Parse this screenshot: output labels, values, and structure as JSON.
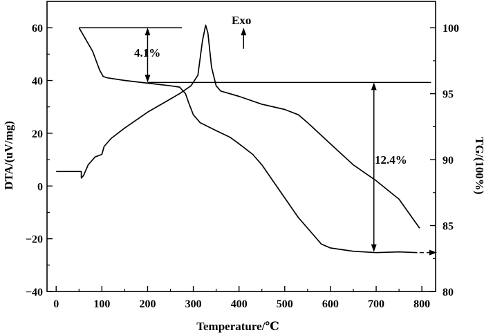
{
  "chart_data": {
    "type": "line",
    "title": "",
    "xlabel": "Temperature/℃",
    "ylabel_left": "DTA/(uV/mg)",
    "ylabel_right": "TG/(100%)",
    "xlim": [
      -20,
      830
    ],
    "ylim_left": [
      -40,
      70
    ],
    "ylim_right": [
      80,
      102
    ],
    "x_ticks": [
      0,
      100,
      200,
      300,
      400,
      500,
      600,
      700,
      800
    ],
    "y_ticks_left": [
      -40,
      -20,
      0,
      20,
      40,
      60
    ],
    "y_ticks_right": [
      80,
      85,
      90,
      95,
      100
    ],
    "grid": false,
    "legend": "none",
    "series": [
      {
        "axis": "left",
        "points": [
          [
            0,
            5.5
          ],
          [
            55,
            5.5
          ],
          [
            55,
            3
          ],
          [
            60,
            4
          ],
          [
            70,
            8
          ],
          [
            85,
            11
          ],
          [
            100,
            12
          ],
          [
            105,
            15
          ],
          [
            120,
            18
          ],
          [
            150,
            22
          ],
          [
            200,
            28
          ],
          [
            240,
            32
          ],
          [
            270,
            35
          ],
          [
            295,
            38
          ],
          [
            310,
            42
          ],
          [
            320,
            55
          ],
          [
            327,
            61
          ],
          [
            332,
            58
          ],
          [
            340,
            45
          ],
          [
            350,
            38
          ],
          [
            360,
            36
          ],
          [
            400,
            34
          ],
          [
            450,
            31
          ],
          [
            500,
            29
          ],
          [
            530,
            27
          ],
          [
            550,
            24
          ],
          [
            600,
            16
          ],
          [
            650,
            8
          ],
          [
            700,
            2
          ],
          [
            750,
            -5
          ],
          [
            795,
            -16
          ]
        ]
      },
      {
        "axis": "right",
        "points": [
          [
            50,
            100
          ],
          [
            60,
            99.4
          ],
          [
            80,
            98.2
          ],
          [
            95,
            96.8
          ],
          [
            103,
            96.3
          ],
          [
            112,
            96.2
          ],
          [
            150,
            96.0
          ],
          [
            200,
            95.8
          ],
          [
            250,
            95.6
          ],
          [
            270,
            95.5
          ],
          [
            283,
            95.0
          ],
          [
            290,
            94.3
          ],
          [
            300,
            93.4
          ],
          [
            315,
            92.8
          ],
          [
            350,
            92.2
          ],
          [
            380,
            91.7
          ],
          [
            400,
            91.2
          ],
          [
            430,
            90.4
          ],
          [
            450,
            89.6
          ],
          [
            480,
            88.1
          ],
          [
            500,
            87.1
          ],
          [
            530,
            85.6
          ],
          [
            560,
            84.4
          ],
          [
            580,
            83.6
          ],
          [
            600,
            83.3
          ],
          [
            650,
            83.05
          ],
          [
            700,
            82.95
          ],
          [
            750,
            83.0
          ],
          [
            790,
            82.95
          ]
        ]
      }
    ],
    "annotations": {
      "mass_loss_1": "4.1%",
      "mass_loss_2": "12.4%",
      "exo": "Exo"
    }
  }
}
